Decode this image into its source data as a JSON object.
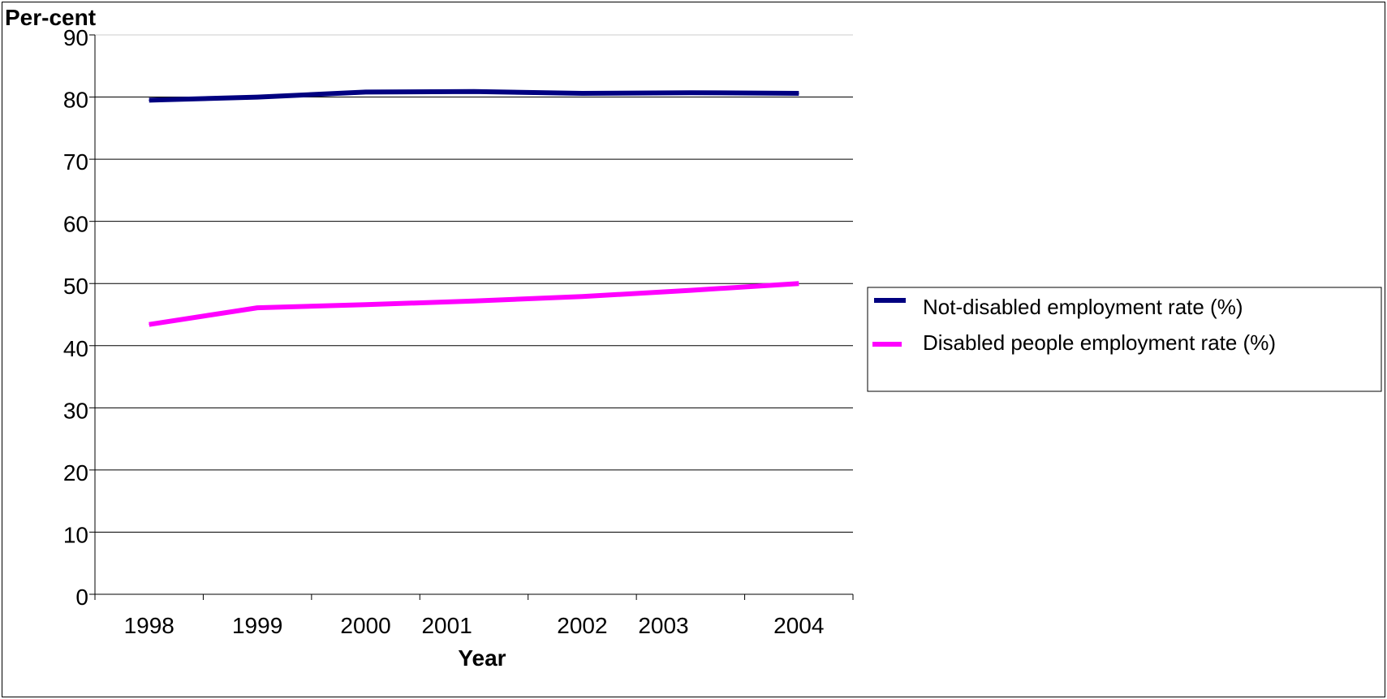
{
  "chart_data": {
    "type": "line",
    "title": "",
    "ylabel": "Per-cent",
    "xlabel": "Year",
    "ylim": [
      0,
      90
    ],
    "y_ticks": [
      0,
      10,
      20,
      30,
      40,
      50,
      60,
      70,
      80,
      90
    ],
    "x_categories": [
      "1998",
      "1999",
      "2000",
      "2001",
      "2002",
      "2003",
      "2004"
    ],
    "x_positions": [
      1998.0,
      1999.0,
      2000.0,
      2000.75,
      2002.0,
      2002.75,
      2004.0
    ],
    "xlim": [
      1997.5,
      2004.5
    ],
    "x_minor_ticks": [
      1997.5,
      1998.5,
      1999.5,
      2000.5,
      2001.5,
      2002.5,
      2003.5,
      2004.5
    ],
    "grid": true,
    "legend_position": "right",
    "series": [
      {
        "name": "Not-disabled employment rate (%)",
        "color": "#000080",
        "x": [
          1998.0,
          1999.0,
          2000.0,
          2001.0,
          2002.0,
          2003.0,
          2004.0
        ],
        "values": [
          79.5,
          80.0,
          80.8,
          80.9,
          80.6,
          80.7,
          80.6
        ]
      },
      {
        "name": "Disabled people employment rate (%)",
        "color": "#FF00FF",
        "x": [
          1998.0,
          1999.0,
          2000.0,
          2001.0,
          2002.0,
          2003.0,
          2004.0
        ],
        "values": [
          43.4,
          46.1,
          46.6,
          47.2,
          47.9,
          48.9,
          50.0
        ]
      }
    ]
  }
}
